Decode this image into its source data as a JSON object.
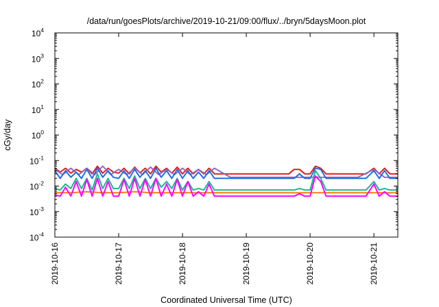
{
  "chart_data": {
    "type": "line",
    "title": "/data/run/goesPlots/archive/2019-10-21/09:00/flux/../bryn/5daysMoon.plot",
    "xlabel": "Coordinated Universal Time (UTC)",
    "ylabel": "cGy/day",
    "y_scale": "log",
    "ylim": [
      0.0001,
      10000
    ],
    "y_ticks": [
      {
        "base": "10",
        "exp": "4",
        "value": 10000
      },
      {
        "base": "10",
        "exp": "3",
        "value": 1000
      },
      {
        "base": "10",
        "exp": "2",
        "value": 100
      },
      {
        "base": "10",
        "exp": "1",
        "value": 10
      },
      {
        "base": "10",
        "exp": "0",
        "value": 1
      },
      {
        "base": "10",
        "exp": "-1",
        "value": 0.1
      },
      {
        "base": "10",
        "exp": "-2",
        "value": 0.01
      },
      {
        "base": "10",
        "exp": "-3",
        "value": 0.001
      },
      {
        "base": "10",
        "exp": "-4",
        "value": 0.0001
      }
    ],
    "x_ticks": [
      "2019-10-16",
      "2019-10-17",
      "2019-10-18",
      "2019-10-19",
      "2019-10-20",
      "2019-10-21"
    ],
    "xlim": [
      "2019-10-16T00:00",
      "2019-10-21T09:00"
    ],
    "grid": false,
    "legend": "none",
    "series": [
      {
        "color": "#e41a1c",
        "x": [
          "2019-10-16T00:00",
          "2019-10-16T02:00",
          "2019-10-16T04:00",
          "2019-10-16T06:00",
          "2019-10-16T08:00",
          "2019-10-16T10:00",
          "2019-10-16T12:00",
          "2019-10-16T14:00",
          "2019-10-16T16:00",
          "2019-10-16T18:00",
          "2019-10-16T20:00",
          "2019-10-16T22:00",
          "2019-10-17T00:00",
          "2019-10-17T02:00",
          "2019-10-17T04:00",
          "2019-10-17T06:00",
          "2019-10-17T08:00",
          "2019-10-17T10:00",
          "2019-10-17T12:00",
          "2019-10-17T14:00",
          "2019-10-17T16:00",
          "2019-10-17T18:00",
          "2019-10-17T20:00",
          "2019-10-17T22:00",
          "2019-10-18T00:00",
          "2019-10-18T02:00",
          "2019-10-18T04:00",
          "2019-10-18T06:00",
          "2019-10-18T08:00",
          "2019-10-18T10:00",
          "2019-10-18T12:00",
          "2019-10-18T16:00",
          "2019-10-18T20:00",
          "2019-10-19T00:00",
          "2019-10-19T04:00",
          "2019-10-19T08:00",
          "2019-10-19T12:00",
          "2019-10-19T16:00",
          "2019-10-19T18:00",
          "2019-10-19T20:00",
          "2019-10-19T22:00",
          "2019-10-20T00:00",
          "2019-10-20T02:00",
          "2019-10-20T04:00",
          "2019-10-20T06:00",
          "2019-10-20T08:00",
          "2019-10-20T12:00",
          "2019-10-20T15:00",
          "2019-10-20T18:00",
          "2019-10-20T21:00",
          "2019-10-21T00:00",
          "2019-10-21T02:00",
          "2019-10-21T04:00",
          "2019-10-21T06:00",
          "2019-10-21T09:00"
        ],
        "values": [
          0.05,
          0.035,
          0.05,
          0.032,
          0.045,
          0.035,
          0.05,
          0.03,
          0.06,
          0.032,
          0.05,
          0.035,
          0.032,
          0.05,
          0.03,
          0.055,
          0.033,
          0.05,
          0.03,
          0.06,
          0.035,
          0.05,
          0.032,
          0.055,
          0.03,
          0.05,
          0.03,
          0.045,
          0.03,
          0.05,
          0.03,
          0.03,
          0.03,
          0.03,
          0.03,
          0.03,
          0.03,
          0.03,
          0.045,
          0.045,
          0.03,
          0.03,
          0.06,
          0.05,
          0.03,
          0.03,
          0.03,
          0.03,
          0.03,
          0.03,
          0.05,
          0.03,
          0.05,
          0.03,
          0.03
        ]
      },
      {
        "color": "#9467bd",
        "x": [
          "2019-10-16T00:00",
          "2019-10-16T03:00",
          "2019-10-16T06:00",
          "2019-10-16T09:00",
          "2019-10-16T12:00",
          "2019-10-16T15:00",
          "2019-10-16T18:00",
          "2019-10-16T21:00",
          "2019-10-17T00:00",
          "2019-10-17T03:00",
          "2019-10-17T06:00",
          "2019-10-17T09:00",
          "2019-10-17T12:00",
          "2019-10-17T15:00",
          "2019-10-17T18:00",
          "2019-10-17T21:00",
          "2019-10-18T00:00",
          "2019-10-18T03:00",
          "2019-10-18T06:00",
          "2019-10-18T09:00",
          "2019-10-18T12:00",
          "2019-10-18T18:00",
          "2019-10-19T00:00",
          "2019-10-19T12:00",
          "2019-10-19T18:00",
          "2019-10-20T00:00",
          "2019-10-20T06:00",
          "2019-10-20T12:00",
          "2019-10-20T18:00",
          "2019-10-21T00:00",
          "2019-10-21T04:00",
          "2019-10-21T09:00"
        ],
        "values": [
          0.045,
          0.028,
          0.05,
          0.028,
          0.05,
          0.028,
          0.06,
          0.028,
          0.045,
          0.028,
          0.05,
          0.028,
          0.055,
          0.028,
          0.045,
          0.028,
          0.05,
          0.028,
          0.045,
          0.028,
          0.05,
          0.022,
          0.022,
          0.022,
          0.022,
          0.022,
          0.022,
          0.022,
          0.022,
          0.045,
          0.022,
          0.022
        ]
      },
      {
        "color": "#1f6fe0",
        "x": [
          "2019-10-16T00:00",
          "2019-10-16T02:00",
          "2019-10-16T04:00",
          "2019-10-16T06:00",
          "2019-10-16T08:00",
          "2019-10-16T10:00",
          "2019-10-16T12:00",
          "2019-10-16T14:00",
          "2019-10-16T16:00",
          "2019-10-16T18:00",
          "2019-10-16T20:00",
          "2019-10-16T22:00",
          "2019-10-17T00:00",
          "2019-10-17T02:00",
          "2019-10-17T04:00",
          "2019-10-17T06:00",
          "2019-10-17T08:00",
          "2019-10-17T10:00",
          "2019-10-17T12:00",
          "2019-10-17T14:00",
          "2019-10-17T16:00",
          "2019-10-17T18:00",
          "2019-10-17T20:00",
          "2019-10-17T22:00",
          "2019-10-18T00:00",
          "2019-10-18T02:00",
          "2019-10-18T04:00",
          "2019-10-18T06:00",
          "2019-10-18T08:00",
          "2019-10-18T10:00",
          "2019-10-18T12:00",
          "2019-10-18T16:00",
          "2019-10-18T20:00",
          "2019-10-19T00:00",
          "2019-10-19T04:00",
          "2019-10-19T08:00",
          "2019-10-19T12:00",
          "2019-10-19T16:00",
          "2019-10-19T18:00",
          "2019-10-19T20:00",
          "2019-10-19T22:00",
          "2019-10-20T00:00",
          "2019-10-20T02:00",
          "2019-10-20T04:00",
          "2019-10-20T06:00",
          "2019-10-20T08:00",
          "2019-10-20T12:00",
          "2019-10-20T15:00",
          "2019-10-20T18:00",
          "2019-10-20T21:00",
          "2019-10-21T00:00",
          "2019-10-21T02:00",
          "2019-10-21T04:00",
          "2019-10-21T06:00",
          "2019-10-21T09:00"
        ],
        "values": [
          0.04,
          0.02,
          0.04,
          0.022,
          0.035,
          0.02,
          0.045,
          0.02,
          0.05,
          0.022,
          0.04,
          0.022,
          0.02,
          0.04,
          0.02,
          0.045,
          0.022,
          0.04,
          0.02,
          0.05,
          0.022,
          0.04,
          0.02,
          0.045,
          0.02,
          0.04,
          0.02,
          0.035,
          0.02,
          0.04,
          0.02,
          0.02,
          0.02,
          0.02,
          0.02,
          0.02,
          0.02,
          0.02,
          0.02,
          0.03,
          0.02,
          0.02,
          0.05,
          0.045,
          0.02,
          0.02,
          0.02,
          0.02,
          0.02,
          0.02,
          0.04,
          0.02,
          0.04,
          0.02,
          0.02
        ]
      },
      {
        "color": "#17b890",
        "x": [
          "2019-10-16T00:00",
          "2019-10-16T02:00",
          "2019-10-16T04:00",
          "2019-10-16T06:00",
          "2019-10-16T08:00",
          "2019-10-16T10:00",
          "2019-10-16T12:00",
          "2019-10-16T14:00",
          "2019-10-16T16:00",
          "2019-10-16T18:00",
          "2019-10-16T20:00",
          "2019-10-16T22:00",
          "2019-10-17T00:00",
          "2019-10-17T02:00",
          "2019-10-17T04:00",
          "2019-10-17T06:00",
          "2019-10-17T08:00",
          "2019-10-17T10:00",
          "2019-10-17T12:00",
          "2019-10-17T14:00",
          "2019-10-17T16:00",
          "2019-10-17T18:00",
          "2019-10-17T20:00",
          "2019-10-17T22:00",
          "2019-10-18T00:00",
          "2019-10-18T02:00",
          "2019-10-18T04:00",
          "2019-10-18T06:00",
          "2019-10-18T08:00",
          "2019-10-18T10:00",
          "2019-10-18T12:00",
          "2019-10-18T16:00",
          "2019-10-18T20:00",
          "2019-10-19T00:00",
          "2019-10-19T04:00",
          "2019-10-19T08:00",
          "2019-10-19T12:00",
          "2019-10-19T16:00",
          "2019-10-19T18:00",
          "2019-10-19T20:00",
          "2019-10-19T22:00",
          "2019-10-20T00:00",
          "2019-10-20T02:00",
          "2019-10-20T04:00",
          "2019-10-20T06:00",
          "2019-10-20T08:00",
          "2019-10-20T12:00",
          "2019-10-20T15:00",
          "2019-10-20T18:00",
          "2019-10-20T21:00",
          "2019-10-21T00:00",
          "2019-10-21T02:00",
          "2019-10-21T04:00",
          "2019-10-21T06:00",
          "2019-10-21T09:00"
        ],
        "values": [
          0.008,
          0.007,
          0.012,
          0.008,
          0.02,
          0.008,
          0.02,
          0.007,
          0.03,
          0.008,
          0.02,
          0.008,
          0.008,
          0.02,
          0.008,
          0.025,
          0.008,
          0.02,
          0.008,
          0.02,
          0.009,
          0.015,
          0.008,
          0.02,
          0.007,
          0.015,
          0.007,
          0.008,
          0.007,
          0.015,
          0.007,
          0.007,
          0.007,
          0.007,
          0.007,
          0.007,
          0.007,
          0.007,
          0.007,
          0.008,
          0.007,
          0.007,
          0.04,
          0.02,
          0.007,
          0.007,
          0.007,
          0.007,
          0.007,
          0.007,
          0.015,
          0.007,
          0.008,
          0.007,
          0.007
        ]
      },
      {
        "color": "#ff7f0e",
        "x": [
          "2019-10-16T00:00",
          "2019-10-16T06:00",
          "2019-10-16T12:00",
          "2019-10-16T18:00",
          "2019-10-17T00:00",
          "2019-10-17T06:00",
          "2019-10-17T12:00",
          "2019-10-17T18:00",
          "2019-10-18T00:00",
          "2019-10-18T06:00",
          "2019-10-18T12:00",
          "2019-10-19T00:00",
          "2019-10-19T12:00",
          "2019-10-20T00:00",
          "2019-10-20T12:00",
          "2019-10-21T00:00",
          "2019-10-21T09:00"
        ],
        "values": [
          0.0055,
          0.0055,
          0.006,
          0.0055,
          0.0055,
          0.006,
          0.0055,
          0.0055,
          0.0055,
          0.0055,
          0.0055,
          0.0055,
          0.0055,
          0.0055,
          0.0055,
          0.0055,
          0.0055
        ]
      },
      {
        "color": "#ff00ff",
        "x": [
          "2019-10-16T00:00",
          "2019-10-16T02:00",
          "2019-10-16T04:00",
          "2019-10-16T06:00",
          "2019-10-16T08:00",
          "2019-10-16T10:00",
          "2019-10-16T12:00",
          "2019-10-16T14:00",
          "2019-10-16T16:00",
          "2019-10-16T18:00",
          "2019-10-16T20:00",
          "2019-10-16T22:00",
          "2019-10-17T00:00",
          "2019-10-17T02:00",
          "2019-10-17T04:00",
          "2019-10-17T06:00",
          "2019-10-17T08:00",
          "2019-10-17T10:00",
          "2019-10-17T12:00",
          "2019-10-17T14:00",
          "2019-10-17T16:00",
          "2019-10-17T18:00",
          "2019-10-17T20:00",
          "2019-10-17T22:00",
          "2019-10-18T00:00",
          "2019-10-18T02:00",
          "2019-10-18T04:00",
          "2019-10-18T06:00",
          "2019-10-18T08:00",
          "2019-10-18T10:00",
          "2019-10-18T12:00",
          "2019-10-18T16:00",
          "2019-10-18T20:00",
          "2019-10-19T00:00",
          "2019-10-19T04:00",
          "2019-10-19T08:00",
          "2019-10-19T12:00",
          "2019-10-19T16:00",
          "2019-10-19T18:00",
          "2019-10-19T20:00",
          "2019-10-19T22:00",
          "2019-10-20T00:00",
          "2019-10-20T02:00",
          "2019-10-20T04:00",
          "2019-10-20T06:00",
          "2019-10-20T08:00",
          "2019-10-20T12:00",
          "2019-10-20T15:00",
          "2019-10-20T18:00",
          "2019-10-20T21:00",
          "2019-10-21T00:00",
          "2019-10-21T02:00",
          "2019-10-21T04:00",
          "2019-10-21T06:00",
          "2019-10-21T09:00"
        ],
        "values": [
          0.0045,
          0.004,
          0.009,
          0.004,
          0.015,
          0.004,
          0.018,
          0.004,
          0.02,
          0.004,
          0.015,
          0.004,
          0.004,
          0.018,
          0.004,
          0.02,
          0.004,
          0.018,
          0.004,
          0.02,
          0.004,
          0.012,
          0.004,
          0.018,
          0.004,
          0.015,
          0.004,
          0.006,
          0.004,
          0.012,
          0.004,
          0.004,
          0.004,
          0.004,
          0.004,
          0.004,
          0.004,
          0.004,
          0.004,
          0.005,
          0.004,
          0.004,
          0.025,
          0.015,
          0.004,
          0.004,
          0.004,
          0.004,
          0.004,
          0.004,
          0.012,
          0.004,
          0.006,
          0.004,
          0.004
        ]
      }
    ]
  }
}
